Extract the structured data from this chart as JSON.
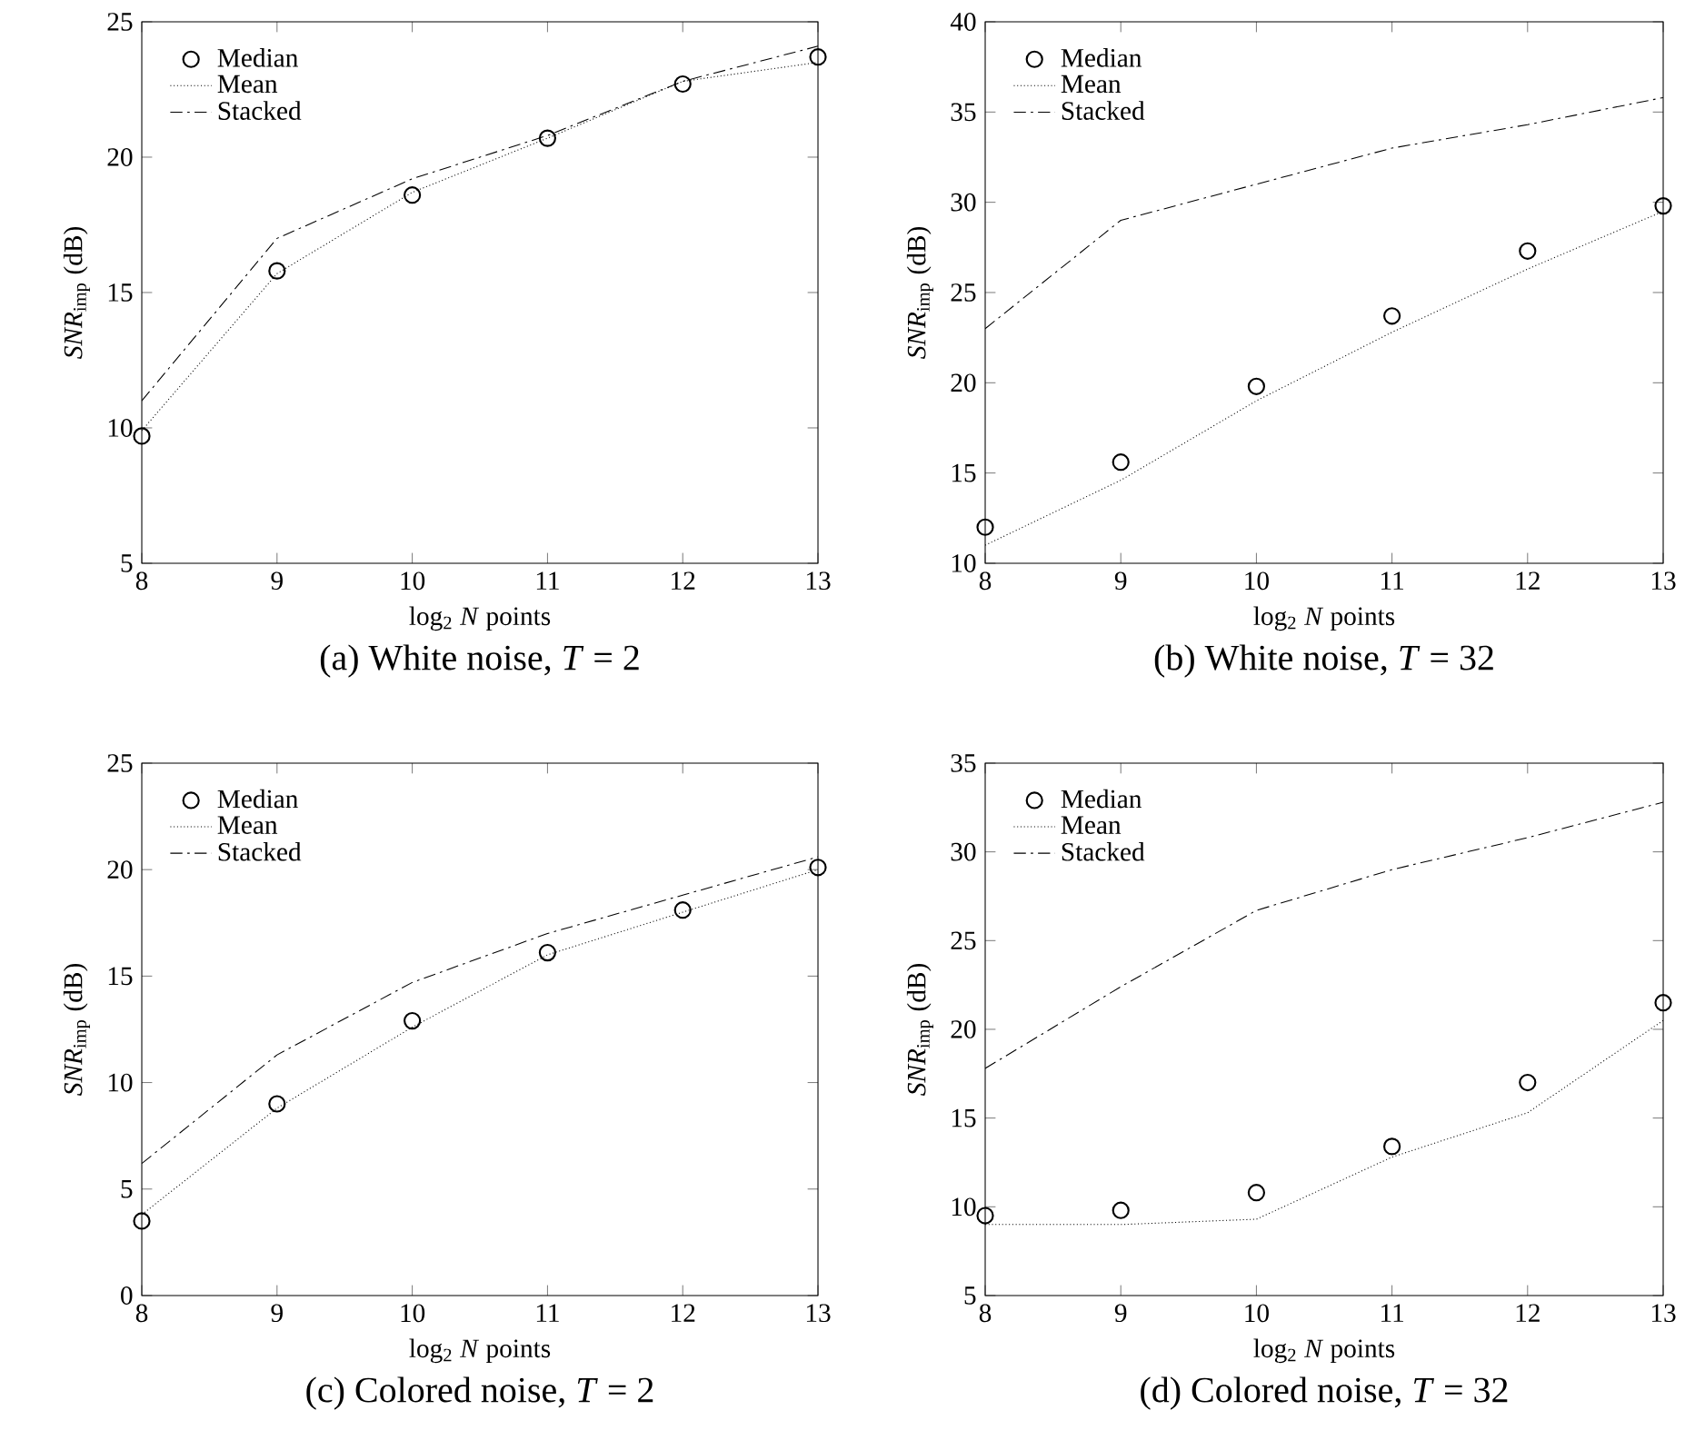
{
  "chart_data": [
    {
      "type": "line",
      "title": "(a) White noise, *T* = 2",
      "xlabel": "log$_{2}$ *N* points",
      "ylabel": "*SNR*$_{imp}$ (dB)",
      "x": [
        8,
        9,
        10,
        11,
        12,
        13
      ],
      "xlim": [
        8,
        13
      ],
      "xticks": [
        8,
        9,
        10,
        11,
        12,
        13
      ],
      "ylim": [
        5,
        25
      ],
      "yticks": [
        5,
        10,
        15,
        20,
        25
      ],
      "legend": "top left",
      "series": [
        {
          "name": "Median",
          "type": "scatter",
          "marker": "circle",
          "color": "#000000",
          "values": [
            9.7,
            15.8,
            18.6,
            20.7,
            22.7,
            23.7
          ]
        },
        {
          "name": "Mean",
          "type": "line",
          "line_style": "dotted",
          "color": "#000000",
          "values": [
            9.9,
            15.7,
            18.7,
            20.7,
            22.8,
            23.5
          ]
        },
        {
          "name": "Stacked",
          "type": "line",
          "line_style": "dashdot",
          "color": "#000000",
          "values": [
            11,
            17,
            19.2,
            20.8,
            22.8,
            24.1
          ]
        }
      ]
    },
    {
      "type": "line",
      "title": "(b) White noise, *T* = 32",
      "xlabel": "log$_{2}$ *N* points",
      "ylabel": "*SNR*$_{imp}$ (dB)",
      "x": [
        8,
        9,
        10,
        11,
        12,
        13
      ],
      "xlim": [
        8,
        13
      ],
      "xticks": [
        8,
        9,
        10,
        11,
        12,
        13
      ],
      "ylim": [
        10,
        40
      ],
      "yticks": [
        10,
        15,
        20,
        25,
        30,
        35,
        40
      ],
      "legend": "top left",
      "series": [
        {
          "name": "Median",
          "type": "scatter",
          "marker": "circle",
          "color": "#000000",
          "values": [
            12,
            15.6,
            19.8,
            23.7,
            27.3,
            29.8
          ]
        },
        {
          "name": "Mean",
          "type": "line",
          "line_style": "dotted",
          "color": "#000000",
          "values": [
            11,
            14.6,
            19,
            22.8,
            26.3,
            29.5
          ]
        },
        {
          "name": "Stacked",
          "type": "line",
          "line_style": "dashdot",
          "color": "#000000",
          "values": [
            23,
            29,
            31,
            33,
            34.3,
            35.8
          ]
        }
      ]
    },
    {
      "type": "line",
      "title": "(c) Colored noise, *T* = 2",
      "xlabel": "log$_{2}$ *N* points",
      "ylabel": "*SNR*$_{imp}$ (dB)",
      "x": [
        8,
        9,
        10,
        11,
        12,
        13
      ],
      "xlim": [
        8,
        13
      ],
      "xticks": [
        8,
        9,
        10,
        11,
        12,
        13
      ],
      "ylim": [
        0,
        25
      ],
      "yticks": [
        0,
        5,
        10,
        15,
        20,
        25
      ],
      "legend": "top left",
      "series": [
        {
          "name": "Median",
          "type": "scatter",
          "marker": "circle",
          "color": "#000000",
          "values": [
            3.5,
            9,
            12.9,
            16.1,
            18.1,
            20.1
          ]
        },
        {
          "name": "Mean",
          "type": "line",
          "line_style": "dotted",
          "color": "#000000",
          "values": [
            3.8,
            8.8,
            12.6,
            16,
            18,
            20
          ]
        },
        {
          "name": "Stacked",
          "type": "line",
          "line_style": "dashdot",
          "color": "#000000",
          "values": [
            6.2,
            11.3,
            14.7,
            17,
            18.8,
            20.6
          ]
        }
      ]
    },
    {
      "type": "line",
      "title": "(d) Colored noise, *T* = 32",
      "xlabel": "log$_{2}$ *N* points",
      "ylabel": "*SNR*$_{imp}$ (dB)",
      "x": [
        8,
        9,
        10,
        11,
        12,
        13
      ],
      "xlim": [
        8,
        13
      ],
      "xticks": [
        8,
        9,
        10,
        11,
        12,
        13
      ],
      "ylim": [
        5,
        35
      ],
      "yticks": [
        5,
        10,
        15,
        20,
        25,
        30,
        35
      ],
      "legend": "top left",
      "series": [
        {
          "name": "Median",
          "type": "scatter",
          "marker": "circle",
          "color": "#000000",
          "values": [
            9.5,
            9.8,
            10.8,
            13.4,
            17,
            21.5
          ]
        },
        {
          "name": "Mean",
          "type": "line",
          "line_style": "dotted",
          "color": "#000000",
          "values": [
            9,
            9,
            9.3,
            12.8,
            15.3,
            20.5
          ]
        },
        {
          "name": "Stacked",
          "type": "line",
          "line_style": "dashdot",
          "color": "#000000",
          "values": [
            17.8,
            22.4,
            26.7,
            29,
            30.8,
            32.8
          ]
        }
      ]
    }
  ]
}
